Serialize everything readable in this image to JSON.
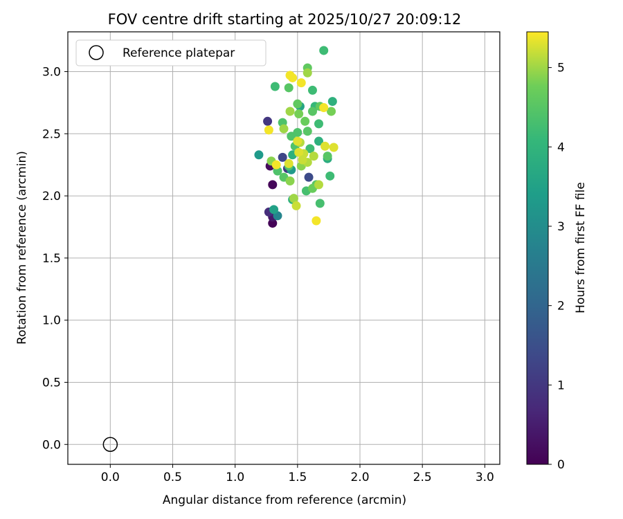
{
  "chart_data": {
    "type": "scatter",
    "title": "FOV centre drift starting at 2025/10/27 20:09:12",
    "xlabel": "Angular distance from reference (arcmin)",
    "ylabel": "Rotation from reference (arcmin)",
    "xlim": [
      -0.34,
      3.12
    ],
    "ylim": [
      -0.16,
      3.32
    ],
    "xticks": [
      "0.0",
      "0.5",
      "1.0",
      "1.5",
      "2.0",
      "2.5",
      "3.0"
    ],
    "yticks": [
      "0.0",
      "0.5",
      "1.0",
      "1.5",
      "2.0",
      "2.5",
      "3.0"
    ],
    "grid": true,
    "legend": {
      "placement": "top-left",
      "entries": [
        {
          "label": "Reference platepar",
          "marker": "open-circle"
        }
      ]
    },
    "reference_point": {
      "x": 0.0,
      "y": 0.0
    },
    "colorbar": {
      "label": "Hours from first FF file",
      "colormap": "viridis",
      "range": [
        0,
        5.45
      ],
      "ticks": [
        "0",
        "1",
        "2",
        "3",
        "4",
        "5"
      ]
    },
    "series": [
      {
        "marker": "filled-circle",
        "points": [
          {
            "x": 1.3,
            "y": 1.78,
            "c": 0.05
          },
          {
            "x": 1.3,
            "y": 2.09,
            "c": 0.1
          },
          {
            "x": 1.28,
            "y": 2.24,
            "c": 0.15
          },
          {
            "x": 1.3,
            "y": 1.83,
            "c": 0.4
          },
          {
            "x": 1.27,
            "y": 1.87,
            "c": 0.8
          },
          {
            "x": 1.26,
            "y": 2.6,
            "c": 1.0
          },
          {
            "x": 1.42,
            "y": 2.22,
            "c": 1.1
          },
          {
            "x": 1.38,
            "y": 2.31,
            "c": 1.3
          },
          {
            "x": 1.59,
            "y": 2.15,
            "c": 1.4
          },
          {
            "x": 1.34,
            "y": 1.84,
            "c": 2.8
          },
          {
            "x": 1.31,
            "y": 1.89,
            "c": 3.5
          },
          {
            "x": 1.19,
            "y": 2.33,
            "c": 3.3
          },
          {
            "x": 1.45,
            "y": 2.21,
            "c": 3.3
          },
          {
            "x": 1.52,
            "y": 2.72,
            "c": 3.6
          },
          {
            "x": 1.46,
            "y": 2.33,
            "c": 3.9
          },
          {
            "x": 1.46,
            "y": 1.97,
            "c": 3.9
          },
          {
            "x": 1.74,
            "y": 2.3,
            "c": 3.8
          },
          {
            "x": 1.78,
            "y": 2.76,
            "c": 3.9
          },
          {
            "x": 1.67,
            "y": 2.44,
            "c": 3.9
          },
          {
            "x": 1.71,
            "y": 3.17,
            "c": 4.2
          },
          {
            "x": 1.32,
            "y": 2.88,
            "c": 4.2
          },
          {
            "x": 1.62,
            "y": 2.85,
            "c": 4.2
          },
          {
            "x": 1.64,
            "y": 2.72,
            "c": 4.1
          },
          {
            "x": 1.67,
            "y": 2.58,
            "c": 4.2
          },
          {
            "x": 1.6,
            "y": 2.38,
            "c": 4.2
          },
          {
            "x": 1.57,
            "y": 2.04,
            "c": 4.3
          },
          {
            "x": 1.76,
            "y": 2.16,
            "c": 4.2
          },
          {
            "x": 1.68,
            "y": 1.94,
            "c": 4.3
          },
          {
            "x": 1.38,
            "y": 2.59,
            "c": 4.4
          },
          {
            "x": 1.5,
            "y": 2.51,
            "c": 4.4
          },
          {
            "x": 1.45,
            "y": 2.48,
            "c": 4.4
          },
          {
            "x": 1.58,
            "y": 2.52,
            "c": 4.5
          },
          {
            "x": 1.48,
            "y": 2.4,
            "c": 4.4
          },
          {
            "x": 1.34,
            "y": 2.2,
            "c": 4.4
          },
          {
            "x": 1.43,
            "y": 2.24,
            "c": 4.4
          },
          {
            "x": 1.39,
            "y": 2.15,
            "c": 4.5
          },
          {
            "x": 1.43,
            "y": 2.87,
            "c": 4.5
          },
          {
            "x": 1.58,
            "y": 3.03,
            "c": 4.6
          },
          {
            "x": 1.5,
            "y": 2.74,
            "c": 4.6
          },
          {
            "x": 1.56,
            "y": 2.6,
            "c": 4.7
          },
          {
            "x": 1.62,
            "y": 2.68,
            "c": 4.5
          },
          {
            "x": 1.68,
            "y": 2.72,
            "c": 4.6
          },
          {
            "x": 1.74,
            "y": 2.32,
            "c": 4.5
          },
          {
            "x": 1.65,
            "y": 2.09,
            "c": 4.5
          },
          {
            "x": 1.62,
            "y": 2.06,
            "c": 4.7
          },
          {
            "x": 1.77,
            "y": 2.68,
            "c": 4.8
          },
          {
            "x": 1.51,
            "y": 2.66,
            "c": 4.8
          },
          {
            "x": 1.44,
            "y": 2.12,
            "c": 4.9
          },
          {
            "x": 1.29,
            "y": 2.28,
            "c": 4.9
          },
          {
            "x": 1.53,
            "y": 2.24,
            "c": 4.9
          },
          {
            "x": 1.47,
            "y": 1.98,
            "c": 5.0
          },
          {
            "x": 1.39,
            "y": 2.54,
            "c": 5.0
          },
          {
            "x": 1.58,
            "y": 2.99,
            "c": 5.0
          },
          {
            "x": 1.44,
            "y": 2.68,
            "c": 5.0
          },
          {
            "x": 1.52,
            "y": 2.43,
            "c": 5.1
          },
          {
            "x": 1.55,
            "y": 2.34,
            "c": 5.2
          },
          {
            "x": 1.63,
            "y": 2.32,
            "c": 5.1
          },
          {
            "x": 1.58,
            "y": 2.27,
            "c": 5.1
          },
          {
            "x": 1.49,
            "y": 1.92,
            "c": 5.2
          },
          {
            "x": 1.67,
            "y": 2.09,
            "c": 5.1
          },
          {
            "x": 1.79,
            "y": 2.39,
            "c": 5.3
          },
          {
            "x": 1.72,
            "y": 2.4,
            "c": 5.3
          },
          {
            "x": 1.51,
            "y": 2.35,
            "c": 5.3
          },
          {
            "x": 1.54,
            "y": 2.29,
            "c": 5.2
          },
          {
            "x": 1.5,
            "y": 2.44,
            "c": 5.3
          },
          {
            "x": 1.27,
            "y": 2.53,
            "c": 5.4
          },
          {
            "x": 1.33,
            "y": 2.25,
            "c": 5.4
          },
          {
            "x": 1.43,
            "y": 2.26,
            "c": 5.3
          },
          {
            "x": 1.65,
            "y": 1.8,
            "c": 5.4
          },
          {
            "x": 1.71,
            "y": 2.71,
            "c": 5.4
          },
          {
            "x": 1.44,
            "y": 2.97,
            "c": 5.4
          },
          {
            "x": 1.46,
            "y": 2.95,
            "c": 5.4
          },
          {
            "x": 1.53,
            "y": 2.91,
            "c": 5.4
          }
        ]
      }
    ]
  }
}
